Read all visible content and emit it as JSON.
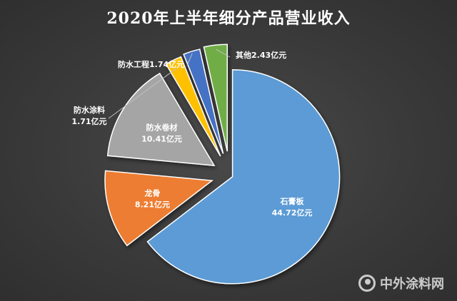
{
  "chart_data": {
    "type": "pie",
    "title": "2020年上半年细分产品营业收入",
    "unit": "亿元",
    "slices": [
      {
        "name": "石膏板",
        "value": 44.72,
        "value_label": "44.72亿元",
        "color": "#5b9bd5",
        "label_style": "inside-two-line"
      },
      {
        "name": "龙骨",
        "value": 8.21,
        "value_label": "8.21亿元",
        "color": "#ed7d31",
        "label_style": "inside-two-line"
      },
      {
        "name": "防水卷材",
        "value": 10.41,
        "value_label": "10.41亿元",
        "color": "#a5a5a5",
        "label_style": "inside-two-line"
      },
      {
        "name": "防水涂料",
        "value": 1.71,
        "value_label": "1.71亿元",
        "color": "#ffc000",
        "label_style": "outside-two-line"
      },
      {
        "name": "防水工程",
        "value": 1.74,
        "value_label": "1.74亿元",
        "color": "#4472c4",
        "label_style": "outside-one-line"
      },
      {
        "name": "其他",
        "value": 2.43,
        "value_label": "2.43亿元",
        "color": "#70ad47",
        "label_style": "outside-one-line"
      }
    ],
    "legend": "none"
  },
  "watermark": {
    "text": "中外涂料网",
    "icon": "paint-logo-icon"
  }
}
